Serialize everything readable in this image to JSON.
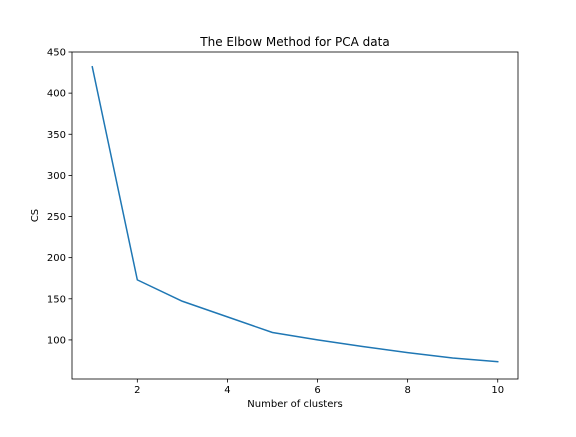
{
  "chart_data": {
    "type": "line",
    "title": "The Elbow Method for PCA data",
    "xlabel": "Number of clusters",
    "ylabel": "CS",
    "x": [
      1,
      2,
      3,
      4,
      5,
      6,
      7,
      8,
      9,
      10
    ],
    "series": [
      {
        "values": [
          432,
          173,
          147,
          128,
          109,
          100,
          92,
          84.5,
          78,
          73.5
        ],
        "color": "#1f77b4"
      }
    ],
    "xlim": [
      0.55,
      10.45
    ],
    "ylim": [
      52.5,
      450
    ],
    "xticks": [
      2,
      4,
      6,
      8,
      10
    ],
    "yticks": [
      100,
      150,
      200,
      250,
      300,
      350,
      400,
      450
    ],
    "grid": false,
    "legend": "none"
  }
}
